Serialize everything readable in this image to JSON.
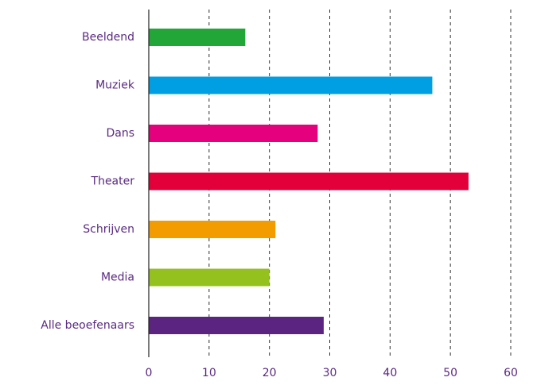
{
  "chart_data": {
    "type": "barh",
    "categories": [
      "Beeldend",
      "Muziek",
      "Dans",
      "Theater",
      "Schrijven",
      "Media",
      "Alle beoefenaars"
    ],
    "values": [
      16,
      47,
      28,
      53,
      21,
      20,
      29
    ],
    "colors": [
      "#22a638",
      "#009fe3",
      "#e5007e",
      "#e3003a",
      "#f39c00",
      "#95c11f",
      "#5a2480"
    ],
    "xlim": [
      0,
      60
    ],
    "xticks": [
      0,
      10,
      20,
      30,
      40,
      50,
      60
    ],
    "grid": true
  }
}
